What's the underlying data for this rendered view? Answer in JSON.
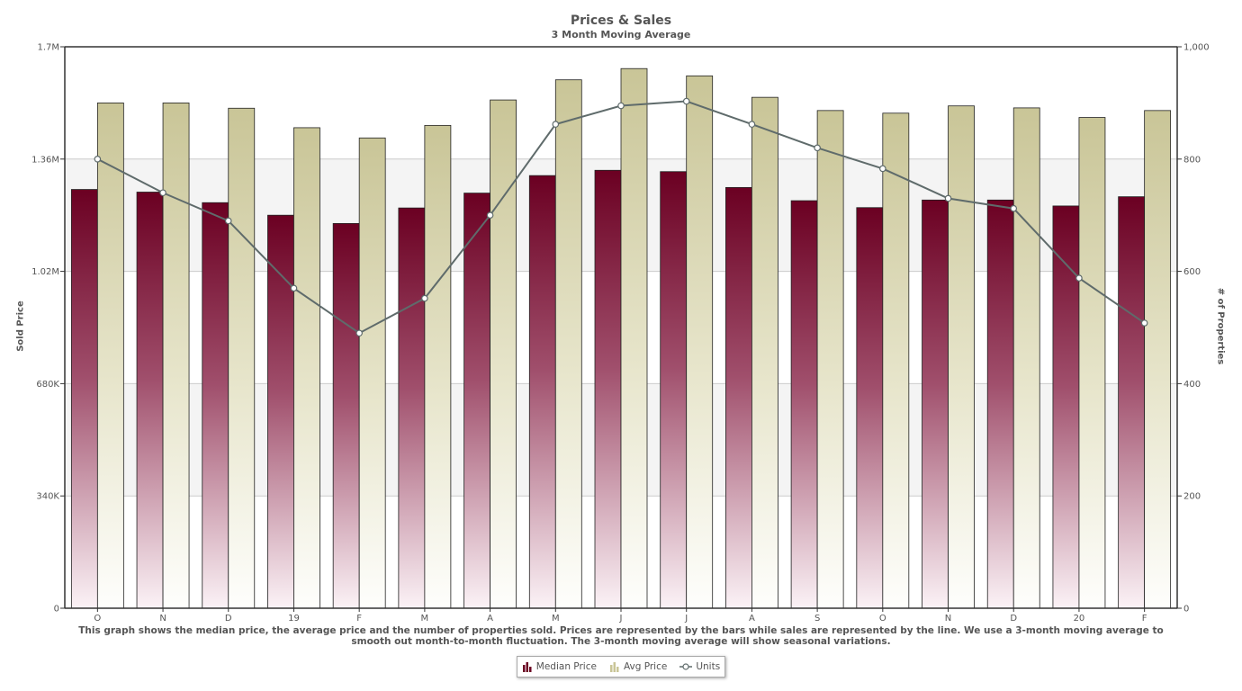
{
  "chart_data": {
    "type": "bar",
    "title": "Prices & Sales",
    "subtitle": "3 Month Moving Average",
    "categories": [
      "O",
      "N",
      "D",
      "19",
      "F",
      "M",
      "A",
      "M",
      "J",
      "J",
      "A",
      "S",
      "O",
      "N",
      "D",
      "20",
      "F"
    ],
    "series": [
      {
        "name": "Median Price",
        "kind": "bar",
        "axis": "left",
        "color": "#6b0022",
        "values": [
          1268000,
          1260000,
          1228000,
          1190000,
          1165000,
          1212000,
          1257000,
          1310000,
          1326000,
          1322000,
          1274000,
          1234000,
          1213000,
          1236000,
          1236000,
          1218000,
          1246000
        ]
      },
      {
        "name": "Avg Price",
        "kind": "bar",
        "axis": "left",
        "color": "#c9c597",
        "values": [
          1530000,
          1530000,
          1514000,
          1455000,
          1424000,
          1462000,
          1539000,
          1600000,
          1634000,
          1612000,
          1547000,
          1507000,
          1499000,
          1521000,
          1515000,
          1486000,
          1507000
        ]
      },
      {
        "name": "Units",
        "kind": "line",
        "axis": "right",
        "color": "#5f6b6b",
        "values": [
          800,
          740,
          690,
          570,
          490,
          552,
          700,
          862,
          895,
          903,
          862,
          820,
          783,
          730,
          712,
          588,
          508
        ]
      }
    ],
    "ylabel_left": "Sold Price",
    "ylabel_right": "# of Properties",
    "ylim_left": [
      0,
      1700000
    ],
    "ylim_right": [
      0,
      1000
    ],
    "yticks_left": [
      "0",
      "340K",
      "680K",
      "1.02M",
      "1.36M",
      "1.7M"
    ],
    "yticks_right": [
      "0",
      "200",
      "400",
      "600",
      "800",
      "1,000"
    ],
    "grid": true,
    "legend_position": "bottom-center"
  },
  "footnote": "This graph shows the median price, the average price and the number of properties sold. Prices are represented by the bars while sales are represented by the line. We use a 3-month moving average to smooth out month-to-month fluctuation. The 3-month moving average will show seasonal variations.",
  "legend": {
    "median_label": "Median Price",
    "avg_label": "Avg Price",
    "units_label": "Units"
  }
}
